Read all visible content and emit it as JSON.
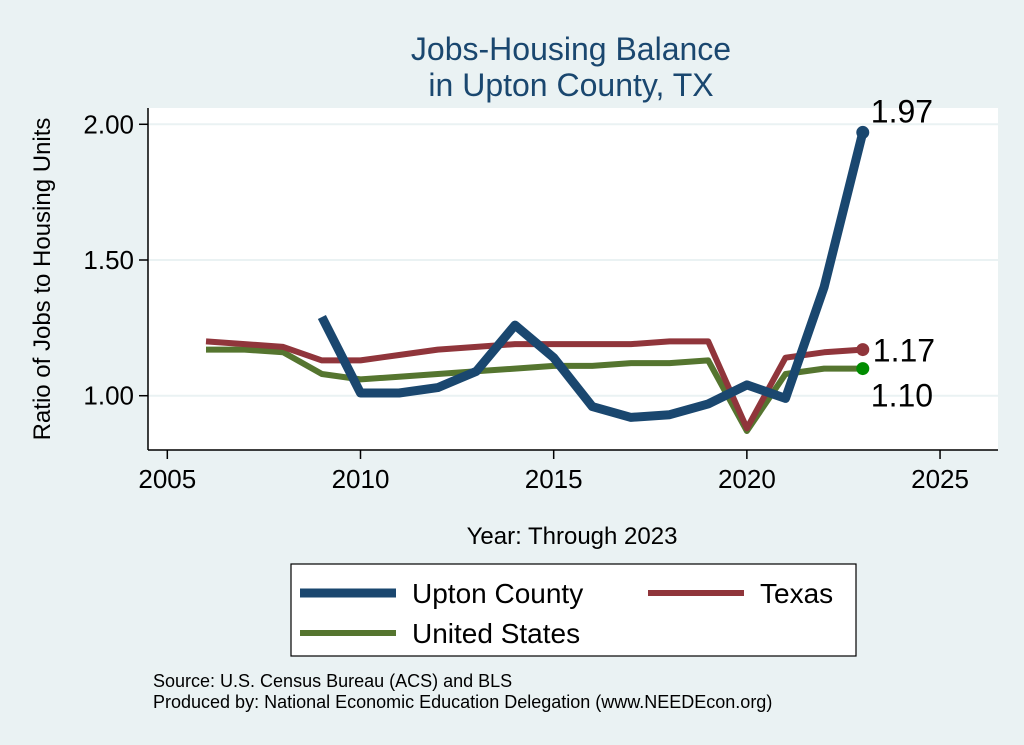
{
  "chart_data": {
    "type": "line",
    "title_line1": "Jobs-Housing Balance",
    "title_line2": "in Upton County, TX",
    "xlabel": "Year: Through 2023",
    "ylabel": "Ratio of Jobs to Housing Units",
    "xlim": [
      2004.5,
      2026.5
    ],
    "ylim": [
      0.8,
      2.06
    ],
    "xticks": [
      2005,
      2010,
      2015,
      2020,
      2025
    ],
    "yticks": [
      1.0,
      1.5,
      2.0
    ],
    "ytick_labels": [
      "1.00",
      "1.50",
      "2.00"
    ],
    "grid": true,
    "series": [
      {
        "name": "Upton County",
        "color": "#1a476f",
        "end_label": "1.97",
        "x": [
          2009,
          2010,
          2011,
          2012,
          2013,
          2014,
          2015,
          2016,
          2017,
          2018,
          2019,
          2020,
          2021,
          2022,
          2023
        ],
        "values": [
          1.29,
          1.01,
          1.01,
          1.03,
          1.09,
          1.26,
          1.14,
          0.96,
          0.92,
          0.93,
          0.97,
          1.04,
          0.99,
          1.4,
          1.97
        ]
      },
      {
        "name": "Texas",
        "color": "#90353b",
        "end_label": "1.17",
        "x": [
          2006,
          2007,
          2008,
          2009,
          2010,
          2011,
          2012,
          2013,
          2014,
          2015,
          2016,
          2017,
          2018,
          2019,
          2020,
          2021,
          2022,
          2023
        ],
        "values": [
          1.2,
          1.19,
          1.18,
          1.13,
          1.13,
          1.15,
          1.17,
          1.18,
          1.19,
          1.19,
          1.19,
          1.19,
          1.2,
          1.2,
          0.88,
          1.14,
          1.16,
          1.17
        ]
      },
      {
        "name": "United States",
        "color": "#55752f",
        "end_label": "1.10",
        "x": [
          2006,
          2007,
          2008,
          2009,
          2010,
          2011,
          2012,
          2013,
          2014,
          2015,
          2016,
          2017,
          2018,
          2019,
          2020,
          2021,
          2022,
          2023
        ],
        "values": [
          1.17,
          1.17,
          1.16,
          1.08,
          1.06,
          1.07,
          1.08,
          1.09,
          1.1,
          1.11,
          1.11,
          1.12,
          1.12,
          1.13,
          0.87,
          1.08,
          1.1,
          1.1
        ]
      }
    ],
    "notes": [
      "Source: U.S. Census Bureau (ACS) and BLS",
      "Produced by: National Economic Education Delegation (www.NEEDEcon.org)"
    ]
  }
}
